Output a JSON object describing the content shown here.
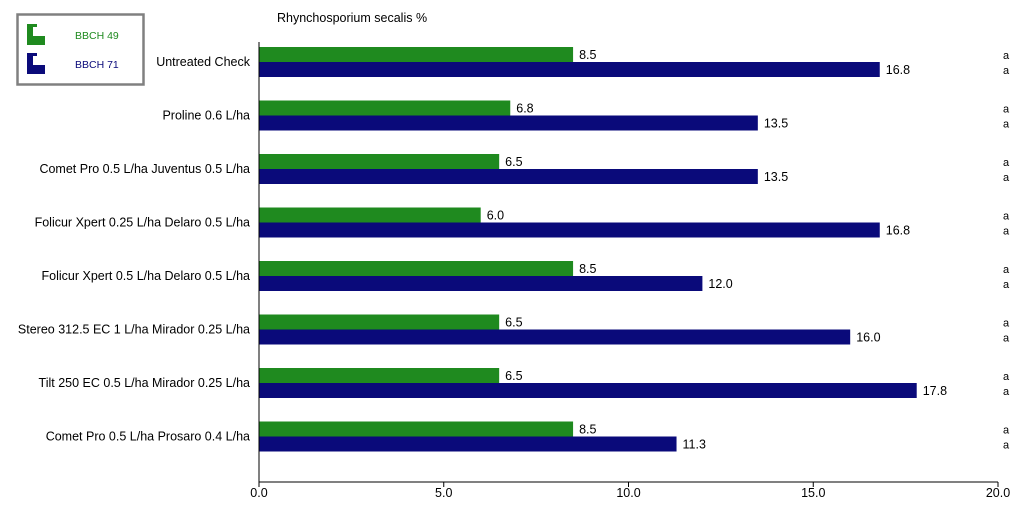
{
  "colors": {
    "bbch49": "#1f8a1f",
    "bbch71": "#0a0a7a",
    "axis": "#000000",
    "legend_border": "#808080"
  },
  "legend": {
    "items": [
      {
        "label": "BBCH 49",
        "color": "#1f8a1f",
        "icon": "bracket-icon"
      },
      {
        "label": "BBCH 71",
        "color": "#0a0a7a",
        "icon": "bracket-icon"
      }
    ],
    "placement": "top-left"
  },
  "chart_data": {
    "type": "bar",
    "orientation": "horizontal",
    "title": "Rhynchosporium secalis %",
    "xlabel": "",
    "ylabel": "",
    "xlim": [
      0,
      20
    ],
    "x_ticks": [
      "0.0",
      "5.0",
      "10.0",
      "15.0",
      "20.0"
    ],
    "categories": [
      "Untreated Check",
      "Proline 0.6 L/ha",
      "Comet Pro 0.5 L/ha Juventus 0.5 L/ha",
      "Folicur Xpert 0.25 L/ha Delaro 0.5 L/ha",
      "Folicur Xpert 0.5 L/ha Delaro 0.5 L/ha",
      "Stereo 312.5 EC 1 L/ha Mirador 0.25 L/ha",
      "Tilt 250 EC 0.5 L/ha Mirador 0.25 L/ha",
      "Comet Pro 0.5 L/ha Prosaro 0.4 L/ha"
    ],
    "series": [
      {
        "name": "BBCH 49",
        "color": "#1f8a1f",
        "values": [
          8.5,
          6.8,
          6.5,
          6.0,
          8.5,
          6.5,
          6.5,
          8.5
        ],
        "labels": [
          "8.5",
          "6.8",
          "6.5",
          "6.0",
          "8.5",
          "6.5",
          "6.5",
          "8.5"
        ],
        "letters": [
          "a",
          "a",
          "a",
          "a",
          "a",
          "a",
          "a",
          "a"
        ]
      },
      {
        "name": "BBCH 71",
        "color": "#0a0a7a",
        "values": [
          16.8,
          13.5,
          13.5,
          16.8,
          12.0,
          16.0,
          17.8,
          11.3
        ],
        "labels": [
          "16.8",
          "13.5",
          "13.5",
          "16.8",
          "12.0",
          "16.0",
          "17.8",
          "11.3"
        ],
        "letters": [
          "a",
          "a",
          "a",
          "a",
          "a",
          "a",
          "a",
          "a"
        ]
      }
    ],
    "grid": false
  }
}
